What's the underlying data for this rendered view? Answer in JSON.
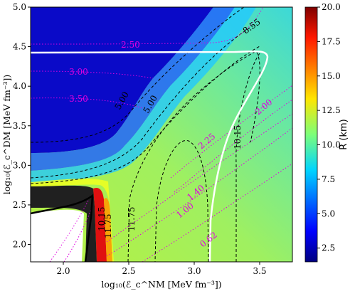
{
  "chart_data": {
    "type": "heatmap",
    "xlabel": "log₁₀(ℰ_c^NM [MeV fm⁻³])",
    "ylabel": "log₁₀(ℰ_c^DM [MeV fm⁻³])",
    "xlim": [
      1.75,
      3.75
    ],
    "ylim": [
      1.78,
      5.0
    ],
    "x_ticks": [
      "2.0",
      "2.5",
      "3.0",
      "3.5"
    ],
    "y_ticks": [
      "2.0",
      "2.5",
      "3.0",
      "3.5",
      "4.0",
      "4.5",
      "5.0"
    ],
    "x_tick_values": [
      2.0,
      2.5,
      3.0,
      3.5
    ],
    "y_tick_values": [
      2.0,
      2.5,
      3.0,
      3.5,
      4.0,
      4.5,
      5.0
    ],
    "colorbar": {
      "label": "R (km)",
      "range": [
        1.5,
        20.0
      ],
      "ticks": [
        "2.5",
        "5.0",
        "7.5",
        "10.0",
        "12.5",
        "15.0",
        "17.5",
        "20.0"
      ],
      "tick_values": [
        2.5,
        5.0,
        7.5,
        10.0,
        12.5,
        15.0,
        17.5,
        20.0
      ],
      "colormap": "jet"
    },
    "black_contour_labels": [
      "8.55",
      "5.00",
      "5.00",
      "10.15",
      "11.75",
      "11.75",
      "10.15"
    ],
    "magenta_contour_labels": [
      "2.50",
      "3.00",
      "3.50",
      "2.00",
      "2.25",
      "1.40",
      "1.00",
      "0.62"
    ],
    "grid": false
  }
}
